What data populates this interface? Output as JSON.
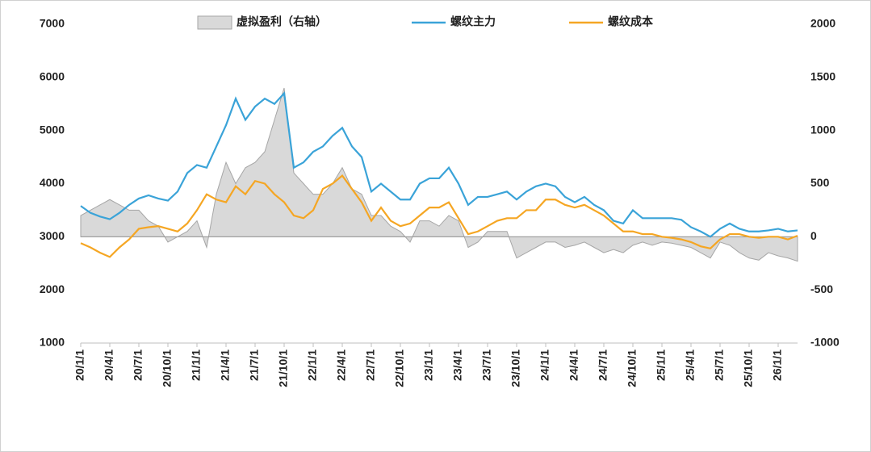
{
  "chart_data": {
    "type": "line",
    "categories": [
      "20/1/1",
      null,
      null,
      "20/4/1",
      null,
      null,
      "20/7/1",
      null,
      null,
      "20/10/1",
      null,
      null,
      "21/1/1",
      null,
      null,
      "21/4/1",
      null,
      null,
      "21/7/1",
      null,
      null,
      "21/10/1",
      null,
      null,
      "22/1/1",
      null,
      null,
      "22/4/1",
      null,
      null,
      "22/7/1",
      null,
      null,
      "22/10/1",
      null,
      null,
      "23/1/1",
      null,
      null,
      "23/4/1",
      null,
      null,
      "23/7/1",
      null,
      null,
      "23/10/1",
      null,
      null,
      "24/1/1",
      null,
      null,
      "24/4/1",
      null,
      null,
      "24/7/1",
      null,
      null,
      "24/10/1",
      null,
      null,
      "25/1/1",
      null,
      null,
      "25/4/1",
      null,
      null,
      "25/7/1",
      null,
      null,
      "25/10/1",
      null,
      null,
      "26/1/1",
      null,
      null
    ],
    "series": [
      {
        "name": "虚拟盈利（右轴）",
        "color": "#d9d9d9",
        "axis": "y2",
        "values": [
          200,
          250,
          300,
          350,
          300,
          250,
          250,
          150,
          100,
          -50,
          0,
          50,
          150,
          -100,
          400,
          700,
          500,
          650,
          700,
          800,
          1100,
          1400,
          600,
          500,
          400,
          400,
          500,
          650,
          450,
          400,
          200,
          200,
          100,
          50,
          -50,
          150,
          150,
          100,
          200,
          150,
          -100,
          -50,
          50,
          50,
          50,
          -200,
          -150,
          -100,
          -50,
          -50,
          -100,
          -80,
          -50,
          -100,
          -150,
          -120,
          -150,
          -80,
          -50,
          -80,
          -50,
          -60,
          -80,
          -100,
          -150,
          -200,
          -50,
          -80,
          -150,
          -200,
          -220,
          -150,
          -180,
          -200,
          -230
        ]
      },
      {
        "name": "螺纹主力",
        "color": "#3aa3d8",
        "values": [
          3580,
          3450,
          3380,
          3330,
          3450,
          3600,
          3720,
          3780,
          3720,
          3680,
          3850,
          4200,
          4350,
          4300,
          4700,
          5100,
          5600,
          5200,
          5450,
          5600,
          5500,
          5700,
          4300,
          4400,
          4600,
          4700,
          4900,
          5050,
          4700,
          4500,
          3850,
          4000,
          3850,
          3700,
          3700,
          4000,
          4100,
          4100,
          4300,
          4000,
          3600,
          3750,
          3750,
          3800,
          3850,
          3700,
          3850,
          3950,
          4000,
          3950,
          3750,
          3650,
          3750,
          3600,
          3500,
          3300,
          3250,
          3500,
          3350,
          3350,
          3350,
          3350,
          3320,
          3180,
          3100,
          3000,
          3150,
          3250,
          3150,
          3100,
          3100,
          3120,
          3150,
          3100,
          3120
        ]
      },
      {
        "name": "螺纹成本",
        "color": "#f5a623",
        "values": [
          2880,
          2800,
          2700,
          2620,
          2800,
          2950,
          3150,
          3180,
          3200,
          3150,
          3100,
          3250,
          3500,
          3800,
          3700,
          3650,
          3950,
          3800,
          4050,
          4000,
          3800,
          3650,
          3400,
          3350,
          3500,
          3900,
          4000,
          4150,
          3900,
          3650,
          3300,
          3550,
          3300,
          3200,
          3250,
          3400,
          3550,
          3550,
          3650,
          3350,
          3050,
          3100,
          3200,
          3300,
          3350,
          3350,
          3500,
          3500,
          3700,
          3700,
          3600,
          3550,
          3600,
          3500,
          3400,
          3250,
          3100,
          3100,
          3050,
          3050,
          3000,
          2980,
          2950,
          2900,
          2820,
          2780,
          2950,
          3050,
          3050,
          3000,
          2980,
          3000,
          3000,
          2950,
          3020
        ]
      }
    ],
    "ylim": [
      1000,
      7000
    ],
    "yticks": [
      1000,
      2000,
      3000,
      4000,
      5000,
      6000,
      7000
    ],
    "y2lim": [
      -1000,
      2000
    ],
    "y2ticks": [
      -1000,
      -500,
      0,
      500,
      1000,
      1500,
      2000
    ],
    "legend": "top"
  }
}
